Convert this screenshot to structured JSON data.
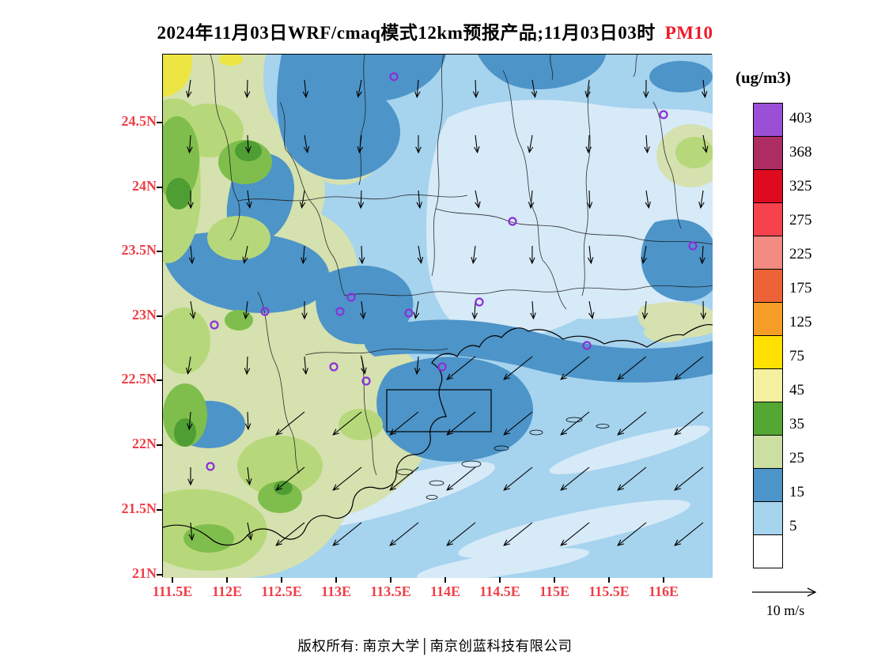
{
  "title": {
    "main": "2024年11月03日WRF/cmaq模式12km预报产品;11月03日03时",
    "highlight": "PM10"
  },
  "axes": {
    "lat_labels": [
      "24.5N",
      "24N",
      "23.5N",
      "23N",
      "22.5N",
      "22N",
      "21.5N",
      "21N"
    ],
    "lon_labels": [
      "111.5E",
      "112E",
      "112.5E",
      "113E",
      "113.5E",
      "114E",
      "114.5E",
      "115E",
      "115.5E",
      "116E"
    ],
    "label_color": "#EF3F48"
  },
  "legend": {
    "unit": "(ug/m3)",
    "items": [
      {
        "color": "#9B4FD6",
        "label": "403"
      },
      {
        "color": "#AD2D62",
        "label": "368"
      },
      {
        "color": "#DE0A20",
        "label": "325"
      },
      {
        "color": "#F5424C",
        "label": "275"
      },
      {
        "color": "#F28B82",
        "label": "225"
      },
      {
        "color": "#ED6337",
        "label": "175"
      },
      {
        "color": "#F69D27",
        "label": "125"
      },
      {
        "color": "#FFE000",
        "label": "75"
      },
      {
        "color": "#F5EFA0",
        "label": "45"
      },
      {
        "color": "#55A733",
        "label": "35"
      },
      {
        "color": "#CCDFA3",
        "label": "25"
      },
      {
        "color": "#4D94C8",
        "label": "15"
      },
      {
        "color": "#A6D3EE",
        "label": "5"
      },
      {
        "color": "#FFFFFF",
        "label": ""
      }
    ]
  },
  "wind_ref": {
    "label": "10 m/s"
  },
  "footer": {
    "text": "版权所有: 南京大学│南京创蓝科技有限公司"
  },
  "chart_data": {
    "type": "heatmap",
    "title": "2024年11月03日WRF/cmaq模式12km预报产品;11月03日03时 PM10",
    "variable": "PM10",
    "unit": "ug/m3",
    "model": "WRF/cmaq",
    "resolution": "12km",
    "forecast_time": "2024-11-03 03时",
    "lon_range": [
      111.5,
      116
    ],
    "lat_range": [
      21,
      24.5
    ],
    "contour_levels": [
      5,
      15,
      25,
      35,
      45,
      75,
      125,
      175,
      225,
      275,
      325,
      368,
      403
    ],
    "level_colors_low_to_high": [
      "#FFFFFF",
      "#A6D3EE",
      "#4D94C8",
      "#CCDFA3",
      "#55A733",
      "#F5EFA0",
      "#FFE000",
      "#F69D27",
      "#ED6337",
      "#F28B82",
      "#F5424C",
      "#DE0A20",
      "#AD2D62",
      "#9B4FD6"
    ],
    "wind_reference_mps": 10,
    "station_markers": {
      "count": 15,
      "color": "#8B30D9"
    },
    "value_summary": "PM10 roughly 5-25 ug/m3 over the sea (blue shades), 25-75 ug/m3 over western inland areas (green shades), locally 75-125 ug/m3 (yellow) near the northwest corner; wind vectors point southward over land and southwestward (northeasterly flow ~10 m/s) over the sea"
  }
}
